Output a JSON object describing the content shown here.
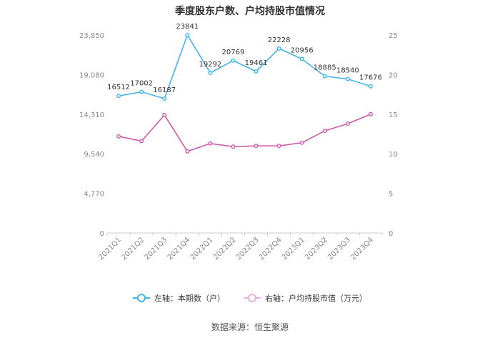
{
  "chart_data": {
    "type": "line",
    "title": "季度股东户数、户均持股市值情况",
    "categories": [
      "2021Q1",
      "2021Q2",
      "2021Q3",
      "2021Q4",
      "2022Q1",
      "2022Q2",
      "2022Q3",
      "2022Q4",
      "2023Q1",
      "2023Q2",
      "2023Q3",
      "2023Q4"
    ],
    "left_axis": {
      "ylim": [
        0,
        23850
      ],
      "ticks": [
        "0",
        "4,770",
        "9,540",
        "14,310",
        "19,080",
        "23,850"
      ],
      "tick_values": [
        0,
        4770,
        9540,
        14310,
        19080,
        23850
      ]
    },
    "right_axis": {
      "ylim": [
        0,
        25
      ],
      "ticks": [
        "0",
        "5",
        "10",
        "15",
        "20",
        "25"
      ],
      "tick_values": [
        0,
        5,
        10,
        15,
        20,
        25
      ]
    },
    "series": [
      {
        "name": "左轴：本期数（户）",
        "axis": "left",
        "color": "#45b3e8",
        "values": [
          16512,
          17002,
          16187,
          23841,
          19292,
          20769,
          19461,
          22228,
          20956,
          18885,
          18540,
          17676
        ],
        "labels": [
          "16512",
          "17002",
          "16187",
          "23841",
          "19292",
          "20769",
          "19461",
          "22228",
          "20956",
          "18885",
          "18540",
          "17676"
        ]
      },
      {
        "name": "右轴：户均持股市值（万元）",
        "axis": "right",
        "color": "#cc5aa8",
        "values": [
          12.2,
          11.6,
          14.9,
          10.3,
          11.3,
          10.9,
          11.0,
          11.0,
          11.4,
          12.9,
          13.8,
          15.0
        ]
      }
    ],
    "grid": false,
    "legend_position": "bottom"
  },
  "source": "数据来源：恒生聚源"
}
